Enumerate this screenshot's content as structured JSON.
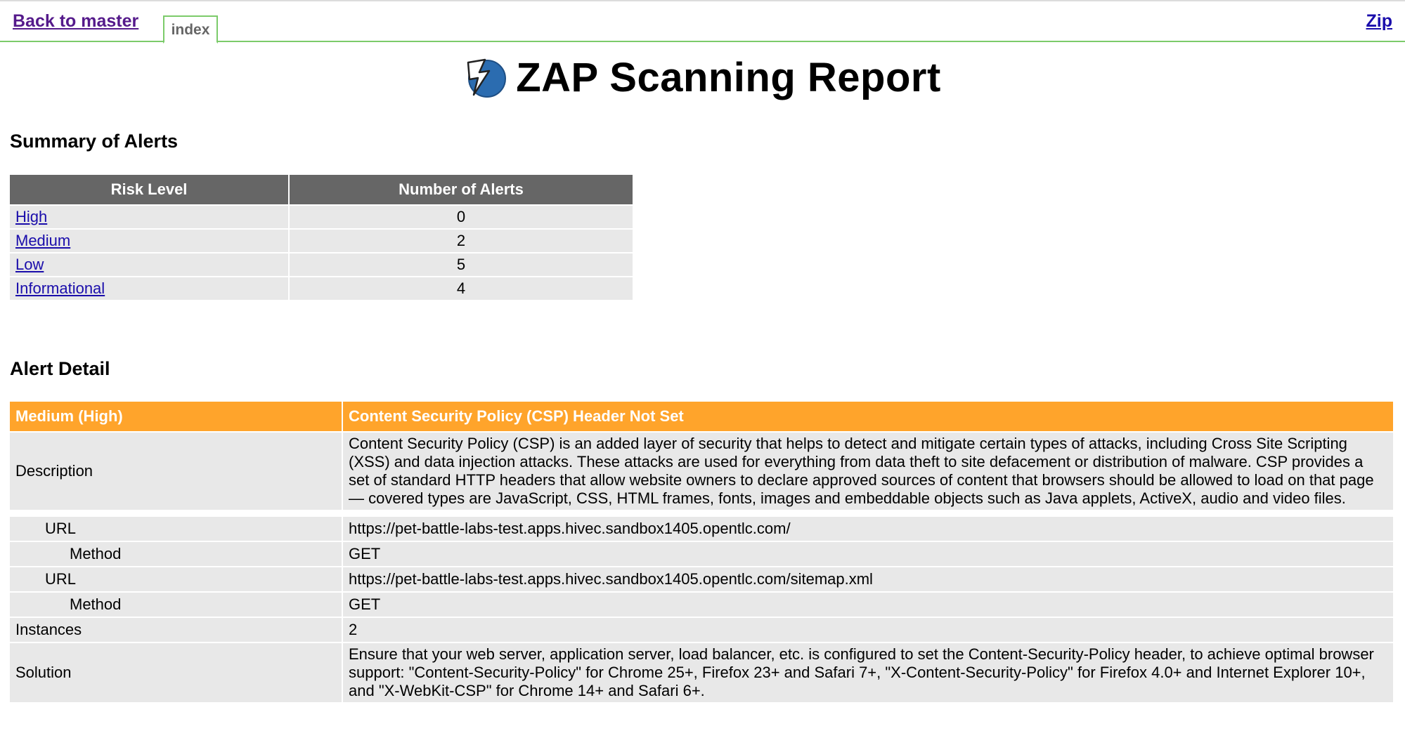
{
  "nav": {
    "back_label": "Back to master",
    "index_tab": "index",
    "zip_label": "Zip"
  },
  "header": {
    "title": "ZAP Scanning Report",
    "logo_icon": "zap-lightning-logo-icon"
  },
  "summary": {
    "heading": "Summary of Alerts",
    "columns": [
      "Risk Level",
      "Number of Alerts"
    ],
    "rows": [
      {
        "level": "High",
        "count": "0"
      },
      {
        "level": "Medium",
        "count": "2"
      },
      {
        "level": "Low",
        "count": "5"
      },
      {
        "level": "Informational",
        "count": "4"
      }
    ]
  },
  "detail": {
    "heading": "Alert Detail",
    "alert_risk": "Medium (High)",
    "alert_name": "Content Security Policy (CSP) Header Not Set",
    "description_label": "Description",
    "description": "Content Security Policy (CSP) is an added layer of security that helps to detect and mitigate certain types of attacks, including Cross Site Scripting (XSS) and data injection attacks. These attacks are used for everything from data theft to site defacement or distribution of malware. CSP provides a set of standard HTTP headers that allow website owners to declare approved sources of content that browsers should be allowed to load on that page — covered types are JavaScript, CSS, HTML frames, fonts, images and embeddable objects such as Java applets, ActiveX, audio and video files.",
    "url_label": "URL",
    "method_label": "Method",
    "instances_list": [
      {
        "url": "https://pet-battle-labs-test.apps.hivec.sandbox1405.opentlc.com/",
        "method": "GET"
      },
      {
        "url": "https://pet-battle-labs-test.apps.hivec.sandbox1405.opentlc.com/sitemap.xml",
        "method": "GET"
      }
    ],
    "instances_label": "Instances",
    "instances_count": "2",
    "solution_label": "Solution",
    "solution": "Ensure that your web server, application server, load balancer, etc. is configured to set the Content-Security-Policy header, to achieve optimal browser support: \"Content-Security-Policy\" for Chrome 25+, Firefox 23+ and Safari 7+, \"X-Content-Security-Policy\" for Firefox 4.0+ and Internet Explorer 10+, and \"X-WebKit-CSP\" for Chrome 14+ and Safari 6+."
  },
  "colors": {
    "header_gray": "#666666",
    "alert_orange": "#ffa42b",
    "row_gray": "#e8e8e8",
    "tab_green": "#7ccb6a"
  }
}
